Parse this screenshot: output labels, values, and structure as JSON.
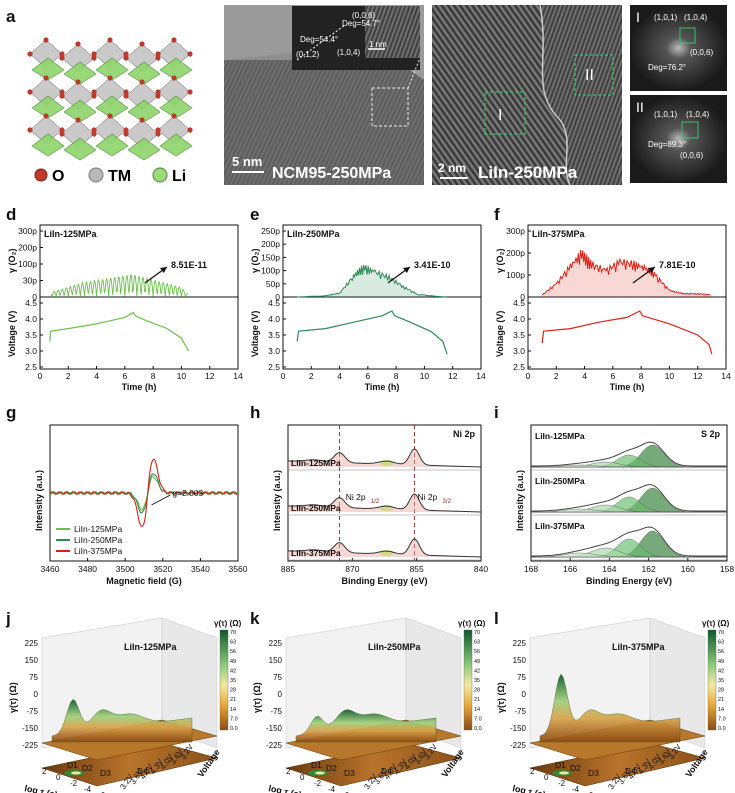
{
  "panel_labels": {
    "a": "a",
    "b": "b",
    "c": "c",
    "d": "d",
    "e": "e",
    "f": "f",
    "g": "g",
    "h": "h",
    "i": "i",
    "j": "j",
    "k": "k",
    "l": "l"
  },
  "legend_a": {
    "o": "O",
    "tm": "TM",
    "li": "Li"
  },
  "colors": {
    "o": "#c0392b",
    "tm": "#b0b0b0",
    "li": "#7dc95e",
    "green_light": "#6cc04a",
    "green_dark": "#2e8b57",
    "red": "#d62418"
  },
  "micro_b": {
    "caption": "NCM95-250MPa",
    "scale": "5 nm",
    "inset_scale": "1 nm",
    "deg1": "Deg=54.7°",
    "deg2": "Deg=54.4°",
    "i006": "(0,0,6)",
    "i012": "(0,1,2)",
    "i104": "(1,0,4)"
  },
  "micro_c": {
    "caption": "LiIn-250MPa",
    "scale": "2 nm",
    "region1": "I",
    "region2": "II"
  },
  "fft": {
    "roman1": "I",
    "roman2": "II",
    "i101": "(1,0,1)",
    "i104": "(1,0,4)",
    "i006": "(0,0,6)",
    "deg1": "Deg=76.2°",
    "deg2": "Deg=89.3°"
  },
  "chart_data": [
    {
      "id": "d",
      "type": "line",
      "title": "LiIn-125MPa",
      "annotation": "8.51E-11",
      "ylabel_top": "γ (O₂)",
      "ylabel_bottom": "Voltage (V)",
      "xlabel": "Time (h)",
      "xlim": [
        0,
        14
      ],
      "xticks": [
        "0",
        "2",
        "4",
        "6",
        "8",
        "10",
        "12",
        "14"
      ],
      "top_ylim": [
        0,
        3e-10
      ],
      "top_yticks": [
        "0",
        "30p",
        "100p",
        "200p",
        "300p"
      ],
      "bottom_ylim": [
        2.5,
        4.5
      ],
      "bottom_yticks": [
        "2.5",
        "3.0",
        "3.5",
        "4.0",
        "4.5"
      ],
      "voltage": [
        [
          0.7,
          3.3
        ],
        [
          0.75,
          3.62
        ],
        [
          2,
          3.7
        ],
        [
          4,
          3.85
        ],
        [
          6,
          4.05
        ],
        [
          6.6,
          4.2
        ],
        [
          6.75,
          4.1
        ],
        [
          7.5,
          3.95
        ],
        [
          9,
          3.7
        ],
        [
          10,
          3.4
        ],
        [
          10.5,
          3.0
        ]
      ],
      "gas_max": [
        [
          0.8,
          5
        ],
        [
          3,
          15
        ],
        [
          5,
          20
        ],
        [
          6.5,
          24
        ],
        [
          8,
          18
        ],
        [
          10,
          10
        ],
        [
          10.5,
          2
        ]
      ]
    },
    {
      "id": "e",
      "type": "line",
      "title": "LiIn-250MPa",
      "annotation": "3.41E-10",
      "ylabel_top": "γ (O₂)",
      "ylabel_bottom": "Voltage (V)",
      "xlabel": "Time (h)",
      "xlim": [
        0,
        14
      ],
      "xticks": [
        "0",
        "2",
        "4",
        "6",
        "8",
        "10",
        "12",
        "14"
      ],
      "top_ylim": [
        0,
        2.5e-10
      ],
      "top_yticks": [
        "0",
        "50p",
        "100p",
        "150p",
        "200p",
        "250p"
      ],
      "bottom_ylim": [
        2.5,
        4.5
      ],
      "bottom_yticks": [
        "2.5",
        "3.0",
        "3.5",
        "4.0",
        "4.5"
      ],
      "voltage": [
        [
          1,
          3.3
        ],
        [
          1.1,
          3.62
        ],
        [
          3,
          3.7
        ],
        [
          5,
          3.9
        ],
        [
          7,
          4.1
        ],
        [
          7.7,
          4.25
        ],
        [
          7.9,
          4.1
        ],
        [
          9,
          3.9
        ],
        [
          10.5,
          3.6
        ],
        [
          11.3,
          3.3
        ],
        [
          11.6,
          2.9
        ]
      ],
      "gas": [
        [
          1,
          0
        ],
        [
          3,
          5
        ],
        [
          4,
          15
        ],
        [
          5,
          80
        ],
        [
          5.7,
          115
        ],
        [
          6.5,
          95
        ],
        [
          7.5,
          75
        ],
        [
          8.5,
          40
        ],
        [
          9.5,
          10
        ],
        [
          11,
          2
        ],
        [
          11.6,
          0
        ]
      ]
    },
    {
      "id": "f",
      "type": "line",
      "title": "LiIn-375MPa",
      "annotation": "7.81E-10",
      "ylabel_top": "γ (O₂)",
      "ylabel_bottom": "Voltage (V)",
      "xlabel": "Time (h)",
      "xlim": [
        0,
        14
      ],
      "xticks": [
        "0",
        "2",
        "4",
        "6",
        "8",
        "10",
        "12",
        "14"
      ],
      "top_ylim": [
        0,
        3e-10
      ],
      "top_yticks": [
        "0",
        "100p",
        "200p",
        "300p"
      ],
      "bottom_ylim": [
        2.5,
        4.5
      ],
      "bottom_yticks": [
        "2.5",
        "3.0",
        "3.5",
        "4.0",
        "4.5"
      ],
      "voltage": [
        [
          1,
          3.25
        ],
        [
          1.1,
          3.62
        ],
        [
          3,
          3.7
        ],
        [
          5,
          3.9
        ],
        [
          7,
          4.05
        ],
        [
          7.9,
          4.25
        ],
        [
          8.1,
          4.1
        ],
        [
          10,
          3.85
        ],
        [
          12,
          3.5
        ],
        [
          12.8,
          3.2
        ],
        [
          13,
          2.9
        ]
      ],
      "gas": [
        [
          1,
          10
        ],
        [
          2,
          60
        ],
        [
          3,
          140
        ],
        [
          3.8,
          200
        ],
        [
          4.5,
          150
        ],
        [
          5.5,
          120
        ],
        [
          6.5,
          160
        ],
        [
          7.5,
          150
        ],
        [
          8.3,
          130
        ],
        [
          9,
          100
        ],
        [
          10,
          30
        ],
        [
          11,
          15
        ],
        [
          12,
          15
        ],
        [
          13,
          10
        ]
      ]
    },
    {
      "id": "g",
      "type": "line",
      "ylabel": "Intensity (a.u.)",
      "xlabel": "Magnetic field (G)",
      "xlim": [
        3460,
        3560
      ],
      "xticks": [
        "3460",
        "3480",
        "3500",
        "3520",
        "3540",
        "3560"
      ],
      "annotation": "g=2.003",
      "series": [
        {
          "name": "LiIn-125MPa",
          "amp": 0.45
        },
        {
          "name": "LiIn-250MPa",
          "amp": 0.55
        },
        {
          "name": "LiIn-375MPa",
          "amp": 0.95
        }
      ],
      "center": 3512
    },
    {
      "id": "h",
      "type": "line",
      "title": "Ni 2p",
      "ylabel": "Intensity (a.u.)",
      "xlabel": "Binding Energy (eV)",
      "xlim": [
        885,
        840
      ],
      "xticks": [
        "885",
        "870",
        "855",
        "840"
      ],
      "peak1": "Ni 2p",
      "peak1_sub": "1/2",
      "peak2": "Ni 2p",
      "peak2_sub": "3/2",
      "series": [
        "LiIn-125MPa",
        "LiIn-250MPa",
        "LiIn-375MPa"
      ],
      "peaks": [
        873,
        855.5
      ]
    },
    {
      "id": "i",
      "type": "line",
      "title": "S 2p",
      "ylabel": "Intensity (a.u.)",
      "xlabel": "Binding Energy (eV)",
      "xlim": [
        168,
        158
      ],
      "xticks": [
        "168",
        "166",
        "164",
        "162",
        "160",
        "158"
      ],
      "series": [
        "LiIn-125MPa",
        "LiIn-250MPa",
        "LiIn-375MPa"
      ]
    },
    {
      "id": "j",
      "type": "surface",
      "title": "LiIn-125MPa",
      "zlabel": "γ(τ) (Ω)",
      "xlabel": "log τ (s)",
      "ylabel": "Voltage",
      "zticks": [
        "225",
        "150",
        "75",
        "0",
        "-75",
        "-150",
        "-225"
      ],
      "xticks": [
        "2",
        "0",
        "-2",
        "-4",
        "-6"
      ],
      "vticks": [
        "3.2V",
        "3.6V",
        "4.0V",
        "4.3V",
        "4.0V",
        "3.6V",
        "3.2V"
      ],
      "regions": [
        "D1",
        "D2",
        "D3",
        "D4"
      ],
      "cbar_title": "γ(τ) (Ω)",
      "cbar_ticks": [
        "70",
        "63",
        "56",
        "49",
        "42",
        "35",
        "28",
        "21",
        "14",
        "7.0",
        "0.0"
      ],
      "peak": 120
    },
    {
      "id": "k",
      "type": "surface",
      "title": "LiIn-250MPa",
      "zlabel": "γ(τ) (Ω)",
      "xlabel": "log τ (s)",
      "ylabel": "Voltage",
      "zticks": [
        "225",
        "150",
        "75",
        "0",
        "-75",
        "-150",
        "-225"
      ],
      "xticks": [
        "2",
        "0",
        "-2",
        "-4",
        "-6"
      ],
      "vticks": [
        "3.2V",
        "3.6V",
        "4.0V",
        "4.3V",
        "4.0V",
        "3.6V",
        "3.2V"
      ],
      "regions": [
        "D1",
        "D2",
        "D3",
        "D4"
      ],
      "cbar_title": "γ(τ) (Ω)",
      "cbar_ticks": [
        "70",
        "63",
        "56",
        "49",
        "42",
        "35",
        "28",
        "21",
        "14",
        "7.0",
        "0.0"
      ],
      "peak": 60
    },
    {
      "id": "l",
      "type": "surface",
      "title": "LiIn-375MPa",
      "zlabel": "γ(τ) (Ω)",
      "xlabel": "log τ (s)",
      "ylabel": "Voltage",
      "zticks": [
        "225",
        "150",
        "75",
        "0",
        "-75",
        "-150",
        "-225"
      ],
      "xticks": [
        "2",
        "0",
        "-2",
        "-4",
        "-6"
      ],
      "vticks": [
        "3.2V",
        "3.6V",
        "4.0V",
        "4.3V",
        "4.0V",
        "3.6V",
        "3.2V"
      ],
      "regions": [
        "D1",
        "D2",
        "D3",
        "D4"
      ],
      "cbar_title": "γ(τ) (Ω)",
      "cbar_ticks": [
        "70",
        "63",
        "56",
        "49",
        "42",
        "35",
        "28",
        "21",
        "14",
        "7.0",
        "0.0"
      ],
      "peak": 210
    }
  ]
}
